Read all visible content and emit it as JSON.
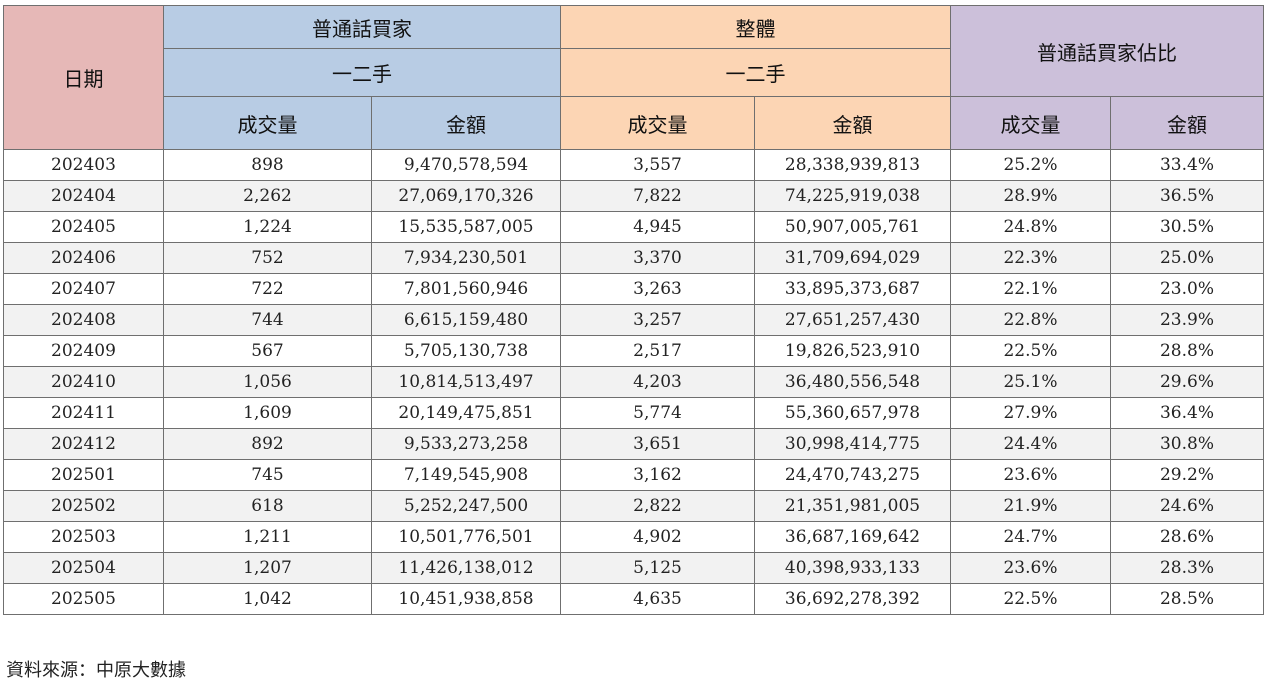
{
  "chart_data": {
    "type": "table",
    "header": {
      "date": "日期",
      "group_mandarin": "普通話買家",
      "group_overall": "整體",
      "group_share": "普通話買家佔比",
      "market": "一二手",
      "volume": "成交量",
      "amount": "金額"
    },
    "rows": [
      [
        "202403",
        "898",
        "9,470,578,594",
        "3,557",
        "28,338,939,813",
        "25.2%",
        "33.4%"
      ],
      [
        "202404",
        "2,262",
        "27,069,170,326",
        "7,822",
        "74,225,919,038",
        "28.9%",
        "36.5%"
      ],
      [
        "202405",
        "1,224",
        "15,535,587,005",
        "4,945",
        "50,907,005,761",
        "24.8%",
        "30.5%"
      ],
      [
        "202406",
        "752",
        "7,934,230,501",
        "3,370",
        "31,709,694,029",
        "22.3%",
        "25.0%"
      ],
      [
        "202407",
        "722",
        "7,801,560,946",
        "3,263",
        "33,895,373,687",
        "22.1%",
        "23.0%"
      ],
      [
        "202408",
        "744",
        "6,615,159,480",
        "3,257",
        "27,651,257,430",
        "22.8%",
        "23.9%"
      ],
      [
        "202409",
        "567",
        "5,705,130,738",
        "2,517",
        "19,826,523,910",
        "22.5%",
        "28.8%"
      ],
      [
        "202410",
        "1,056",
        "10,814,513,497",
        "4,203",
        "36,480,556,548",
        "25.1%",
        "29.6%"
      ],
      [
        "202411",
        "1,609",
        "20,149,475,851",
        "5,774",
        "55,360,657,978",
        "27.9%",
        "36.4%"
      ],
      [
        "202412",
        "892",
        "9,533,273,258",
        "3,651",
        "30,998,414,775",
        "24.4%",
        "30.8%"
      ],
      [
        "202501",
        "745",
        "7,149,545,908",
        "3,162",
        "24,470,743,275",
        "23.6%",
        "29.2%"
      ],
      [
        "202502",
        "618",
        "5,252,247,500",
        "2,822",
        "21,351,981,005",
        "21.9%",
        "24.6%"
      ],
      [
        "202503",
        "1,211",
        "10,501,776,501",
        "4,902",
        "36,687,169,642",
        "24.7%",
        "28.6%"
      ],
      [
        "202504",
        "1,207",
        "11,426,138,012",
        "5,125",
        "40,398,933,133",
        "23.6%",
        "28.3%"
      ],
      [
        "202505",
        "1,042",
        "10,451,938,858",
        "4,635",
        "36,692,278,392",
        "22.5%",
        "28.5%"
      ]
    ],
    "colors": {
      "date_header": "#e6b8b7",
      "mandarin_header": "#b8cce4",
      "overall_header": "#fcd5b4",
      "share_header": "#ccc0da",
      "row_alt": "#f2f2f2"
    }
  },
  "footer": {
    "source": "資料來源：中原大數據"
  }
}
